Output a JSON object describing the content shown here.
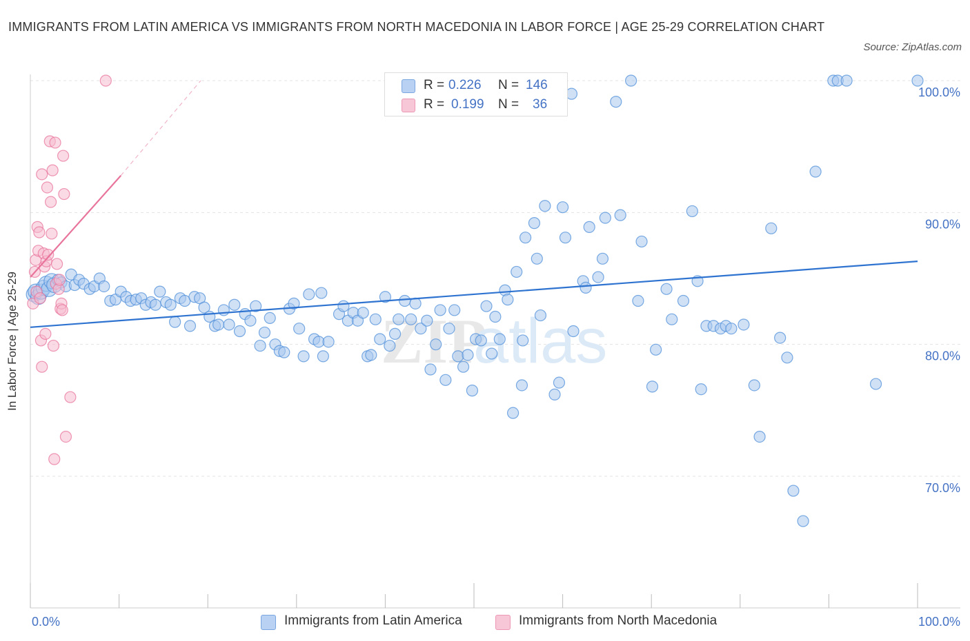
{
  "title": "IMMIGRANTS FROM LATIN AMERICA VS IMMIGRANTS FROM NORTH MACEDONIA IN LABOR FORCE | AGE 25-29 CORRELATION CHART",
  "source": "Source: ZipAtlas.com",
  "watermark": {
    "zip": "ZIP",
    "atlas": "atlas"
  },
  "legend_top": [
    {
      "r_label": "R =",
      "r_value": "0.226",
      "n_label": "N =",
      "n_value": "146",
      "color": "#9dc1ef"
    },
    {
      "r_label": "R =",
      "r_value": "0.199",
      "n_label": "N =",
      "n_value": "36",
      "color": "#f5b8cb"
    }
  ],
  "legend_bottom": [
    {
      "label": "Immigrants from Latin America",
      "color": "#9dc1ef"
    },
    {
      "label": "Immigrants from North Macedonia",
      "color": "#f5b8cb"
    }
  ],
  "chart_data": {
    "type": "scatter",
    "title": "IMMIGRANTS FROM LATIN AMERICA VS IMMIGRANTS FROM NORTH MACEDONIA IN LABOR FORCE | AGE 25-29 CORRELATION CHART",
    "xlabel": "",
    "ylabel": "In Labor Force | Age 25-29",
    "xlim": [
      0,
      100
    ],
    "ylim": [
      60,
      100
    ],
    "x_tick_labels": [
      "0.0%",
      "100.0%"
    ],
    "y_ticks": [
      {
        "value": 70,
        "label": "70.0%"
      },
      {
        "value": 80,
        "label": "80.0%"
      },
      {
        "value": 90,
        "label": "90.0%"
      },
      {
        "value": 100,
        "label": "100.0%"
      }
    ],
    "grid": true,
    "legend_position": "bottom",
    "series": [
      {
        "name": "Immigrants from Latin America",
        "color": "#4f8fd9",
        "fill": "#a9c8ef",
        "trend": {
          "x": [
            0,
            100
          ],
          "y": [
            81.3,
            86.3
          ]
        },
        "points": [
          [
            0.4,
            83.8
          ],
          [
            0.6,
            84.0
          ],
          [
            0.9,
            83.6
          ],
          [
            1.2,
            84.0
          ],
          [
            1.5,
            84.3
          ],
          [
            1.8,
            84.6
          ],
          [
            2.1,
            84.2
          ],
          [
            2.4,
            84.8
          ],
          [
            2.7,
            84.5
          ],
          [
            3.1,
            84.9
          ],
          [
            3.5,
            84.7
          ],
          [
            4.0,
            84.4
          ],
          [
            4.6,
            85.3
          ],
          [
            5.0,
            84.5
          ],
          [
            5.5,
            84.9
          ],
          [
            6.0,
            84.6
          ],
          [
            6.7,
            84.2
          ],
          [
            7.2,
            84.4
          ],
          [
            7.8,
            85.0
          ],
          [
            8.3,
            84.4
          ],
          [
            9.0,
            83.3
          ],
          [
            9.6,
            83.4
          ],
          [
            10.2,
            84.0
          ],
          [
            10.8,
            83.6
          ],
          [
            11.3,
            83.3
          ],
          [
            11.9,
            83.4
          ],
          [
            12.5,
            83.5
          ],
          [
            13.0,
            83.0
          ],
          [
            13.6,
            83.2
          ],
          [
            14.1,
            83.0
          ],
          [
            14.6,
            84.0
          ],
          [
            15.3,
            83.2
          ],
          [
            15.8,
            83.0
          ],
          [
            16.3,
            81.7
          ],
          [
            16.9,
            83.5
          ],
          [
            17.4,
            83.3
          ],
          [
            18.0,
            81.4
          ],
          [
            18.5,
            83.6
          ],
          [
            19.1,
            83.5
          ],
          [
            19.6,
            82.8
          ],
          [
            20.2,
            82.1
          ],
          [
            20.8,
            81.4
          ],
          [
            21.2,
            81.5
          ],
          [
            21.8,
            82.6
          ],
          [
            22.4,
            81.5
          ],
          [
            23.0,
            83.0
          ],
          [
            23.6,
            81.0
          ],
          [
            24.2,
            82.3
          ],
          [
            24.8,
            81.8
          ],
          [
            25.4,
            82.9
          ],
          [
            25.9,
            79.9
          ],
          [
            26.4,
            80.9
          ],
          [
            27.0,
            82.0
          ],
          [
            27.6,
            80.0
          ],
          [
            28.1,
            79.5
          ],
          [
            28.6,
            79.4
          ],
          [
            29.2,
            82.7
          ],
          [
            29.7,
            83.1
          ],
          [
            30.3,
            81.2
          ],
          [
            30.8,
            79.1
          ],
          [
            31.4,
            83.8
          ],
          [
            32.0,
            80.4
          ],
          [
            32.5,
            80.2
          ],
          [
            33.0,
            79.1
          ],
          [
            33.6,
            80.2
          ],
          [
            34.8,
            82.3
          ],
          [
            35.3,
            82.9
          ],
          [
            35.8,
            81.8
          ],
          [
            36.4,
            82.4
          ],
          [
            36.9,
            81.8
          ],
          [
            37.5,
            82.4
          ],
          [
            38.0,
            79.1
          ],
          [
            38.4,
            79.2
          ],
          [
            38.9,
            81.9
          ],
          [
            39.4,
            80.4
          ],
          [
            40.0,
            83.6
          ],
          [
            40.5,
            79.9
          ],
          [
            41.1,
            80.8
          ],
          [
            41.5,
            81.9
          ],
          [
            42.2,
            83.3
          ],
          [
            42.9,
            81.9
          ],
          [
            43.4,
            83.1
          ],
          [
            44.0,
            81.2
          ],
          [
            44.7,
            81.8
          ],
          [
            45.1,
            78.1
          ],
          [
            45.7,
            80.0
          ],
          [
            46.2,
            82.6
          ],
          [
            46.8,
            77.3
          ],
          [
            47.2,
            81.2
          ],
          [
            47.8,
            82.6
          ],
          [
            48.2,
            79.1
          ],
          [
            48.8,
            78.3
          ],
          [
            49.3,
            79.2
          ],
          [
            49.8,
            76.5
          ],
          [
            50.2,
            80.4
          ],
          [
            50.8,
            80.3
          ],
          [
            51.4,
            82.9
          ],
          [
            52.0,
            79.3
          ],
          [
            52.4,
            82.1
          ],
          [
            52.9,
            80.4
          ],
          [
            53.5,
            84.1
          ],
          [
            53.8,
            83.4
          ],
          [
            54.4,
            74.8
          ],
          [
            55.4,
            76.9
          ],
          [
            55.8,
            88.1
          ],
          [
            56.8,
            89.2
          ],
          [
            57.5,
            82.2
          ],
          [
            58.0,
            90.5
          ],
          [
            59.1,
            76.2
          ],
          [
            59.6,
            77.1
          ],
          [
            60.0,
            90.4
          ],
          [
            60.3,
            88.1
          ],
          [
            61.2,
            81.0
          ],
          [
            62.3,
            84.8
          ],
          [
            62.6,
            84.3
          ],
          [
            63.0,
            88.9
          ],
          [
            64.0,
            85.1
          ],
          [
            64.5,
            86.5
          ],
          [
            64.8,
            89.6
          ],
          [
            66.5,
            89.8
          ],
          [
            67.7,
            100.0
          ],
          [
            68.5,
            83.3
          ],
          [
            68.9,
            87.8
          ],
          [
            70.1,
            76.8
          ],
          [
            70.5,
            79.6
          ],
          [
            71.7,
            84.2
          ],
          [
            72.3,
            81.9
          ],
          [
            73.6,
            83.3
          ],
          [
            74.6,
            90.1
          ],
          [
            75.2,
            84.8
          ],
          [
            75.6,
            76.6
          ],
          [
            76.2,
            81.4
          ],
          [
            77.0,
            81.4
          ],
          [
            77.8,
            81.2
          ],
          [
            78.4,
            81.4
          ],
          [
            79.0,
            81.2
          ],
          [
            80.4,
            81.5
          ],
          [
            81.6,
            76.9
          ],
          [
            82.2,
            73.0
          ],
          [
            83.5,
            88.8
          ],
          [
            84.5,
            80.5
          ],
          [
            85.3,
            79.0
          ],
          [
            86.0,
            68.9
          ],
          [
            87.1,
            66.6
          ],
          [
            88.5,
            93.1
          ],
          [
            90.5,
            100.0
          ],
          [
            91.0,
            100.0
          ],
          [
            92.0,
            100.0
          ],
          [
            95.3,
            77.0
          ],
          [
            100.0,
            100.0
          ],
          [
            32.8,
            83.9
          ],
          [
            55.5,
            80.3
          ],
          [
            57.1,
            86.5
          ],
          [
            61.0,
            99.0
          ],
          [
            66.0,
            98.4
          ],
          [
            54.8,
            85.5
          ]
        ]
      },
      {
        "name": "Immigrants from North Macedonia",
        "color": "#e8749b",
        "fill": "#f6bcd0",
        "trend": {
          "x": [
            0,
            10.2
          ],
          "y": [
            85.1,
            92.8
          ]
        },
        "trend_dashed": {
          "x": [
            10.2,
            19.2
          ],
          "y": [
            92.8,
            100.0
          ]
        },
        "points": [
          [
            0.3,
            83.1
          ],
          [
            0.5,
            85.5
          ],
          [
            0.6,
            86.4
          ],
          [
            0.7,
            84.0
          ],
          [
            0.8,
            88.9
          ],
          [
            0.9,
            87.1
          ],
          [
            1.0,
            88.5
          ],
          [
            1.1,
            83.5
          ],
          [
            1.2,
            80.3
          ],
          [
            1.3,
            92.9
          ],
          [
            1.3,
            78.3
          ],
          [
            1.5,
            86.9
          ],
          [
            1.6,
            85.9
          ],
          [
            1.7,
            80.8
          ],
          [
            1.8,
            86.3
          ],
          [
            1.9,
            91.9
          ],
          [
            2.0,
            86.8
          ],
          [
            2.2,
            95.4
          ],
          [
            2.3,
            90.8
          ],
          [
            2.4,
            88.4
          ],
          [
            2.5,
            93.2
          ],
          [
            2.6,
            79.9
          ],
          [
            2.7,
            71.3
          ],
          [
            2.8,
            95.3
          ],
          [
            2.9,
            84.6
          ],
          [
            3.0,
            86.1
          ],
          [
            3.2,
            84.2
          ],
          [
            3.4,
            82.7
          ],
          [
            3.5,
            83.1
          ],
          [
            3.7,
            94.3
          ],
          [
            4.0,
            73.0
          ],
          [
            3.6,
            82.6
          ],
          [
            3.8,
            91.4
          ],
          [
            4.5,
            76.0
          ],
          [
            8.5,
            100.0
          ],
          [
            3.3,
            84.9
          ]
        ]
      }
    ]
  }
}
